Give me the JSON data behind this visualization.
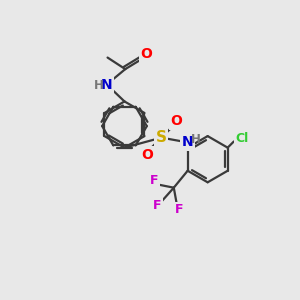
{
  "background_color": "#e8e8e8",
  "bond_color": "#3a3a3a",
  "atom_colors": {
    "O": "#ff0000",
    "N": "#0000cc",
    "S": "#ccaa00",
    "Cl": "#33cc33",
    "F": "#cc00cc",
    "H": "#777777",
    "C": "#3a3a3a"
  },
  "figsize": [
    3.0,
    3.0
  ],
  "dpi": 100
}
